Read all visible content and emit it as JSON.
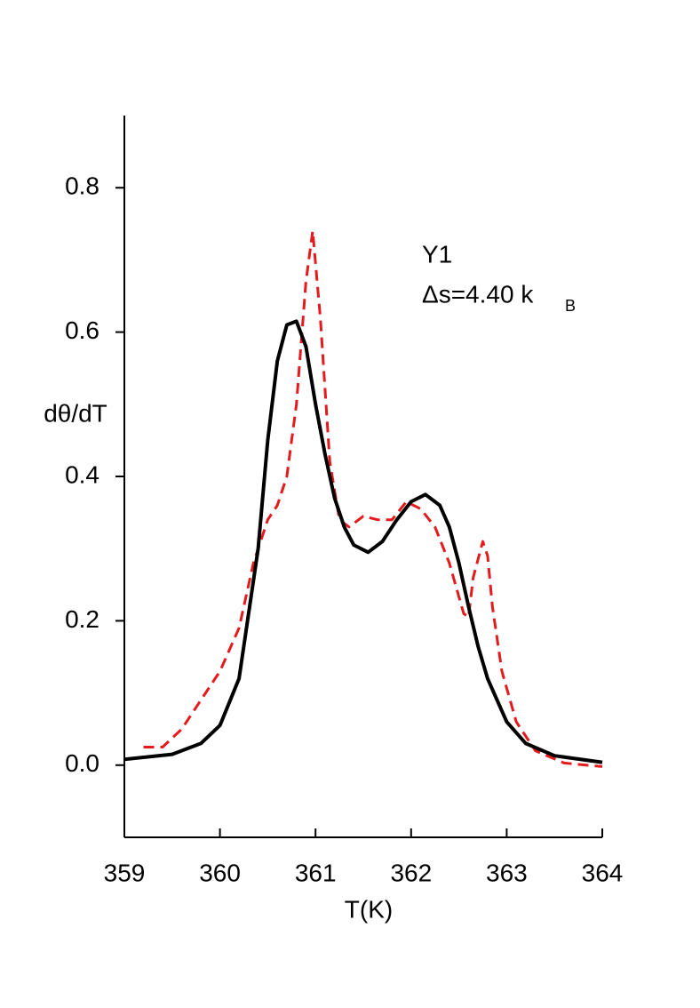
{
  "chart_data": {
    "type": "line",
    "x_label": "T(K)",
    "y_label": "dθ/dT",
    "annotations": [
      "Y1",
      "Δs=4.40 k",
      "B"
    ],
    "xlim": [
      359,
      364
    ],
    "xticks": [
      359,
      360,
      361,
      362,
      363,
      364
    ],
    "ylim": [
      -0.1,
      0.9
    ],
    "yticks": [
      {
        "value": 0,
        "label": "0.0"
      },
      0.2,
      0.4,
      0.6,
      0.8
    ],
    "series": [
      {
        "color": "#000000",
        "dash": "solid",
        "x": [
          359.0,
          359.5,
          359.8,
          360.0,
          360.2,
          360.4,
          360.5,
          360.6,
          360.7,
          360.8,
          360.9,
          361.0,
          361.1,
          361.2,
          361.3,
          361.4,
          361.55,
          361.7,
          361.85,
          362.0,
          362.15,
          362.3,
          362.4,
          362.5,
          362.6,
          362.7,
          362.8,
          363.0,
          363.2,
          363.5,
          364.0
        ],
        "values": [
          0.008,
          0.015,
          0.03,
          0.055,
          0.12,
          0.3,
          0.45,
          0.56,
          0.61,
          0.615,
          0.58,
          0.5,
          0.43,
          0.37,
          0.33,
          0.305,
          0.295,
          0.31,
          0.34,
          0.365,
          0.375,
          0.36,
          0.33,
          0.28,
          0.22,
          0.165,
          0.12,
          0.06,
          0.03,
          0.013,
          0.004
        ]
      },
      {
        "color": "#e41a1c",
        "dash": "dashed",
        "x": [
          359.2,
          359.4,
          359.6,
          359.8,
          360.0,
          360.2,
          360.35,
          360.5,
          360.6,
          360.7,
          360.8,
          360.9,
          360.97,
          361.05,
          361.15,
          361.25,
          361.35,
          361.5,
          361.65,
          361.8,
          361.95,
          362.1,
          362.25,
          362.4,
          362.55,
          362.6,
          362.65,
          362.75,
          362.8,
          362.85,
          362.95,
          363.1,
          363.3,
          363.6,
          364.0
        ],
        "values": [
          0.025,
          0.025,
          0.05,
          0.09,
          0.13,
          0.19,
          0.28,
          0.34,
          0.36,
          0.4,
          0.5,
          0.67,
          0.74,
          0.62,
          0.42,
          0.34,
          0.33,
          0.345,
          0.34,
          0.34,
          0.365,
          0.355,
          0.33,
          0.28,
          0.21,
          0.205,
          0.26,
          0.31,
          0.29,
          0.22,
          0.13,
          0.06,
          0.02,
          0.003,
          -0.002
        ]
      }
    ]
  }
}
